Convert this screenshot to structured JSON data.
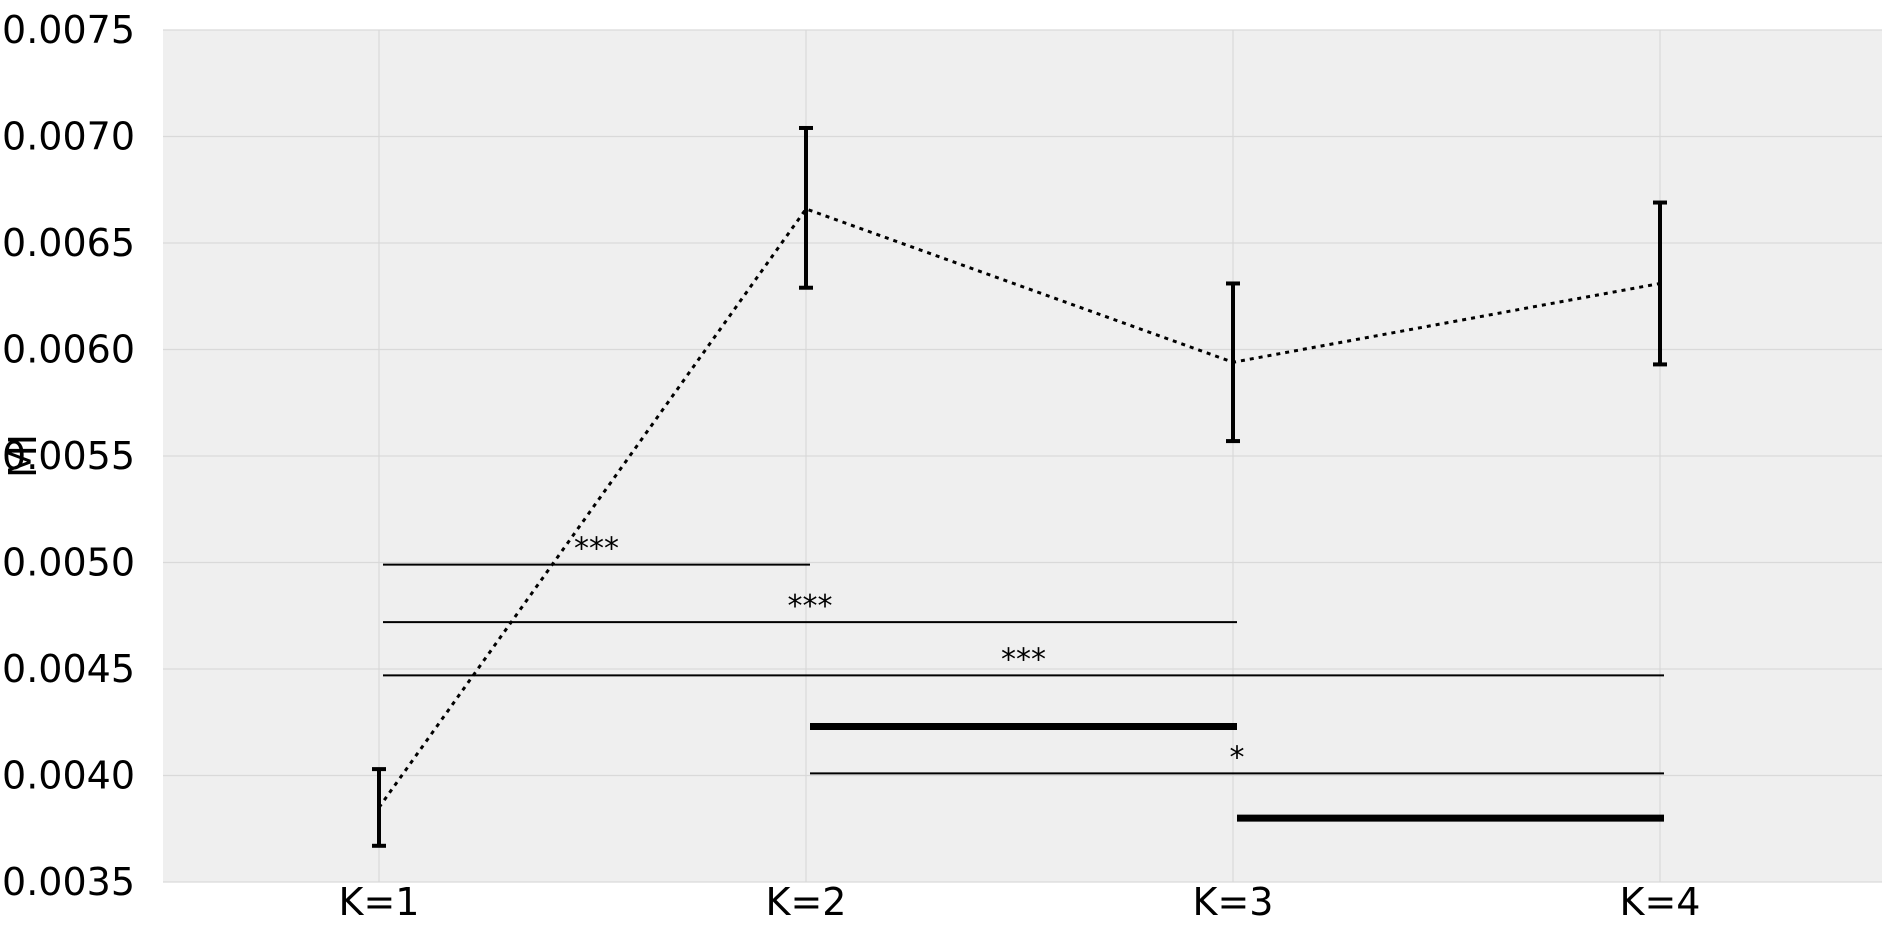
{
  "chart_data": {
    "type": "line",
    "title": "",
    "xlabel": "",
    "ylabel": "MI",
    "categories": [
      "K=1",
      "K=2",
      "K=3",
      "K=4"
    ],
    "ylim": [
      0.0035,
      0.0075
    ],
    "yticks": [
      "0.0035",
      "0.0040",
      "0.0045",
      "0.0050",
      "0.0055",
      "0.0060",
      "0.0065",
      "0.0070",
      "0.0075"
    ],
    "grid": true,
    "series": [
      {
        "values": [
          0.00385,
          0.00666,
          0.00594,
          0.00631
        ],
        "error_low": [
          0.00367,
          0.00629,
          0.00557,
          0.00593
        ],
        "error_high": [
          0.00403,
          0.00704,
          0.00631,
          0.00669
        ],
        "line_style": "dotted"
      }
    ],
    "significance": [
      {
        "from": "K=1",
        "to": "K=2",
        "y": 0.00499,
        "label": "***",
        "heavy": false
      },
      {
        "from": "K=1",
        "to": "K=3",
        "y": 0.00472,
        "label": "***",
        "heavy": false
      },
      {
        "from": "K=1",
        "to": "K=4",
        "y": 0.00447,
        "label": "***",
        "heavy": false
      },
      {
        "from": "K=2",
        "to": "K=3",
        "y": 0.00423,
        "label": "",
        "heavy": true
      },
      {
        "from": "K=2",
        "to": "K=4",
        "y": 0.00401,
        "label": "*",
        "heavy": false
      },
      {
        "from": "K=3",
        "to": "K=4",
        "y": 0.0038,
        "label": "",
        "heavy": true
      }
    ],
    "colors": {
      "plot_background": "#efefef",
      "grid": "#d9d9d9",
      "line": "#000000"
    }
  }
}
